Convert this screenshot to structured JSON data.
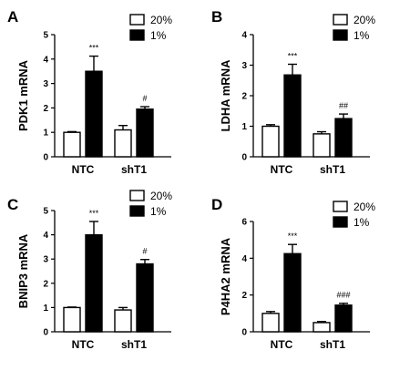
{
  "chart_data": [
    {
      "type": "bar",
      "panel_label": "A",
      "ylabel": "PDK1 mRNA",
      "ylim": [
        0,
        5
      ],
      "yticks": [
        "0",
        "1",
        "2",
        "3",
        "4",
        "5"
      ],
      "categories": [
        "NTC",
        "shT1"
      ],
      "legend": [
        "20%",
        "1%"
      ],
      "series": [
        {
          "name": "20%",
          "values": [
            1.0,
            1.1
          ],
          "errors": [
            0.03,
            0.18
          ],
          "fill": "#ffffff"
        },
        {
          "name": "1%",
          "values": [
            3.5,
            1.95
          ],
          "errors": [
            0.62,
            0.1
          ],
          "fill": "#000000"
        }
      ],
      "annotations": [
        "***",
        "#"
      ]
    },
    {
      "type": "bar",
      "panel_label": "B",
      "ylabel": "LDHA mRNA",
      "ylim": [
        0,
        4
      ],
      "yticks": [
        "0",
        "1",
        "2",
        "3",
        "4"
      ],
      "categories": [
        "NTC",
        "shT1"
      ],
      "legend": [
        "20%",
        "1%"
      ],
      "series": [
        {
          "name": "20%",
          "values": [
            1.0,
            0.75
          ],
          "errors": [
            0.05,
            0.07
          ],
          "fill": "#ffffff"
        },
        {
          "name": "1%",
          "values": [
            2.68,
            1.25
          ],
          "errors": [
            0.35,
            0.15
          ],
          "fill": "#000000"
        }
      ],
      "annotations": [
        "***",
        "##"
      ]
    },
    {
      "type": "bar",
      "panel_label": "C",
      "ylabel": "BNIP3 mRNA",
      "ylim": [
        0,
        5
      ],
      "yticks": [
        "0",
        "1",
        "2",
        "3",
        "4",
        "5"
      ],
      "categories": [
        "NTC",
        "shT1"
      ],
      "legend": [
        "20%",
        "1%"
      ],
      "series": [
        {
          "name": "20%",
          "values": [
            1.0,
            0.9
          ],
          "errors": [
            0.02,
            0.1
          ],
          "fill": "#ffffff"
        },
        {
          "name": "1%",
          "values": [
            4.0,
            2.8
          ],
          "errors": [
            0.55,
            0.18
          ],
          "fill": "#000000"
        }
      ],
      "annotations": [
        "***",
        "#"
      ]
    },
    {
      "type": "bar",
      "panel_label": "D",
      "ylabel": "P4HA2 mRNA",
      "ylim": [
        0,
        6
      ],
      "yticks": [
        "0",
        "2",
        "4",
        "6"
      ],
      "categories": [
        "NTC",
        "shT1"
      ],
      "legend": [
        "20%",
        "1%"
      ],
      "series": [
        {
          "name": "20%",
          "values": [
            1.0,
            0.5
          ],
          "errors": [
            0.1,
            0.06
          ],
          "fill": "#ffffff"
        },
        {
          "name": "1%",
          "values": [
            4.25,
            1.45
          ],
          "errors": [
            0.5,
            0.1
          ],
          "fill": "#000000"
        }
      ],
      "annotations": [
        "***",
        "###"
      ]
    }
  ]
}
